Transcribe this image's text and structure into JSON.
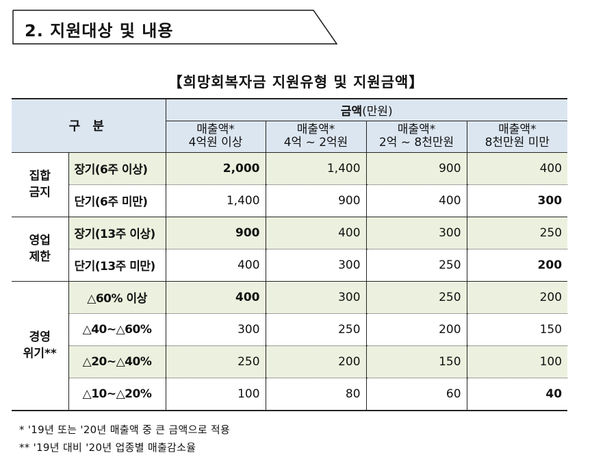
{
  "section": {
    "title": "2. 지원대상 및 내용"
  },
  "table_title": "【희망회복자금 지원유형 및 지원금액】",
  "header": {
    "category": "구 분",
    "amount_label": "금액",
    "amount_unit": "(만원)",
    "columns": [
      {
        "line1": "매출액*",
        "line2": "4억원 이상"
      },
      {
        "line1": "매출액*",
        "line2": "4억 ~ 2억원"
      },
      {
        "line1": "매출액*",
        "line2": "2억 ~ 8천만원"
      },
      {
        "line1": "매출액*",
        "line2": "8천만원 미만"
      }
    ]
  },
  "groups": [
    {
      "name_line1": "집합",
      "name_line2": "금지",
      "rows": [
        {
          "label": "장기(6주 이상)",
          "values": [
            "2,000",
            "1,400",
            "900",
            "400"
          ]
        },
        {
          "label": "단기(6주 미만)",
          "values": [
            "1,400",
            "900",
            "400",
            "300"
          ]
        }
      ]
    },
    {
      "name_line1": "영업",
      "name_line2": "제한",
      "rows": [
        {
          "label": "장기(13주 이상)",
          "values": [
            "900",
            "400",
            "300",
            "250"
          ]
        },
        {
          "label": "단기(13주 미만)",
          "values": [
            "400",
            "300",
            "250",
            "200"
          ]
        }
      ]
    },
    {
      "name_line1": "경영",
      "name_line2": "위기**",
      "rows": [
        {
          "label": "△60% 이상",
          "values": [
            "400",
            "300",
            "250",
            "200"
          ]
        },
        {
          "label": "△40~△60%",
          "values": [
            "300",
            "250",
            "200",
            "150"
          ]
        },
        {
          "label": "△20~△40%",
          "values": [
            "250",
            "200",
            "150",
            "100"
          ]
        },
        {
          "label": "△10~△20%",
          "values": [
            "100",
            "80",
            "60",
            "40"
          ]
        }
      ]
    }
  ],
  "notes": [
    "* '19년 또는 '20년 매출액 중 큰 금액으로 적용",
    "** '19년 대비 '20년 업종별 매출감소율"
  ],
  "colors": {
    "header_bg": "#dce6f1",
    "row_shade": "#ebf1de"
  }
}
